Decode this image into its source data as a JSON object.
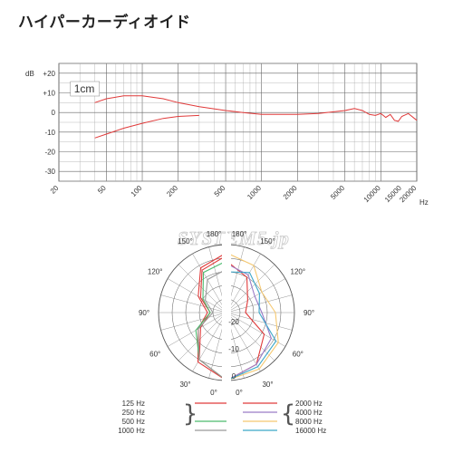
{
  "title": "ハイパーカーディオイド",
  "watermark": "SYSTEM5.jp",
  "chart_data": [
    {
      "type": "line",
      "title": "",
      "xlabel": "Hz",
      "ylabel": "dB",
      "xscale": "log",
      "xlim": [
        20,
        20000
      ],
      "ylim": [
        -35,
        25
      ],
      "grid": true,
      "x_ticks": [
        "20",
        "50",
        "100",
        "200",
        "500",
        "1000",
        "2000",
        "5000",
        "10000",
        "15000",
        "20000"
      ],
      "x_unit": "Hz",
      "y_ticks": [
        {
          "value": 20,
          "label": "+20"
        },
        {
          "value": 10,
          "label": "+10"
        },
        {
          "value": 0,
          "label": "0"
        },
        {
          "value": -10,
          "label": "-10"
        },
        {
          "value": -20,
          "label": "-20"
        },
        {
          "value": -30,
          "label": "-30"
        }
      ],
      "y_unit": "dB",
      "annotation": "1cm",
      "series": [
        {
          "name": "1cm",
          "color": "#e03a3a",
          "dashed_segment_from": 300,
          "x": [
            40,
            50,
            70,
            100,
            150,
            200,
            300,
            500,
            700,
            1000,
            2000,
            3000,
            5000,
            6000,
            7000,
            8000,
            9000,
            10000,
            11000,
            12000,
            13000,
            14000,
            15000,
            17000,
            20000
          ],
          "y": [
            5,
            7,
            8.5,
            8.5,
            7,
            5,
            3,
            1,
            0,
            -1,
            -1,
            -0.5,
            1,
            2,
            1,
            -1,
            -1.5,
            -0.5,
            -2.5,
            -1,
            -4,
            -4.5,
            -2,
            -0.5,
            -4
          ]
        },
        {
          "name": "",
          "color": "#e03a3a",
          "x": [
            40,
            50,
            70,
            100,
            150,
            200,
            300
          ],
          "y": [
            -13,
            -11,
            -8,
            -5.5,
            -3,
            -2,
            -1.5
          ]
        }
      ]
    },
    {
      "type": "polar",
      "title": "",
      "angle_labels": [
        "180°",
        "150°",
        "120°",
        "90°",
        "60°",
        "30°",
        "0°"
      ],
      "radius_labels": [
        "-20",
        "-10",
        "0"
      ],
      "rlim": [
        -25,
        0
      ],
      "left_half_series": [
        {
          "name": "125 Hz",
          "color": "#e03a3a",
          "r": [
            -4,
            -7,
            -14,
            -19,
            -14,
            -5,
            0
          ]
        },
        {
          "name": "250 Hz",
          "color": "#e03a3a",
          "r": [
            -3,
            -6,
            -13,
            -18,
            -13,
            -4,
            0
          ]
        },
        {
          "name": "500 Hz",
          "color": "#4cbb6e",
          "r": [
            -6,
            -8,
            -15,
            -19,
            -12,
            -5,
            0
          ]
        },
        {
          "name": "1000 Hz",
          "color": "#999999",
          "r": [
            -9,
            -11,
            -16,
            -20,
            -13,
            -5,
            0
          ]
        }
      ],
      "right_half_series": [
        {
          "name": "2000 Hz",
          "color": "#e03a3a",
          "r": [
            -6,
            -10,
            -16,
            -18,
            -9,
            -3,
            0
          ]
        },
        {
          "name": "4000 Hz",
          "color": "#9a7cc7",
          "r": [
            -7,
            -9,
            -13,
            -12,
            -6,
            -3,
            0
          ]
        },
        {
          "name": "8000 Hz",
          "color": "#f5c870",
          "r": [
            -3,
            -5,
            -10,
            -7,
            -3,
            -1,
            0
          ]
        },
        {
          "name": "16000 Hz",
          "color": "#3aa6c8",
          "r": [
            -10,
            -8,
            -11,
            -13,
            -4,
            -2,
            0
          ]
        }
      ],
      "legend_left": [
        {
          "label": "125 Hz",
          "color": "#e03a3a"
        },
        {
          "label": "250 Hz",
          "color": "#e03a3a"
        },
        {
          "label": "500 Hz",
          "color": "#4cbb6e"
        },
        {
          "label": "1000 Hz",
          "color": "#999999"
        }
      ],
      "legend_right": [
        {
          "label": "2000 Hz",
          "color": "#e03a3a"
        },
        {
          "label": "4000 Hz",
          "color": "#9a7cc7"
        },
        {
          "label": "8000 Hz",
          "color": "#f5c870"
        },
        {
          "label": "16000 Hz",
          "color": "#3aa6c8"
        }
      ]
    }
  ]
}
